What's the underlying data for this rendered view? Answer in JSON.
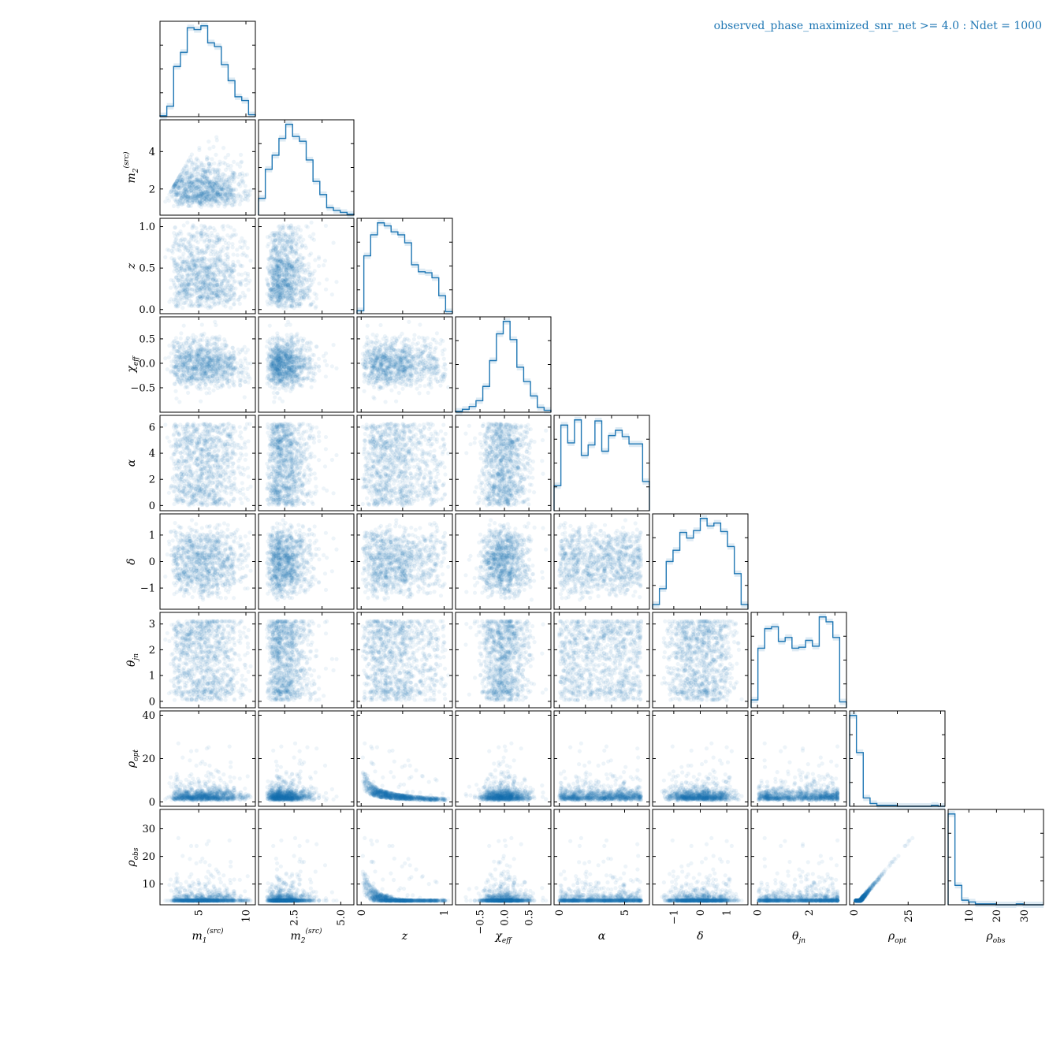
{
  "chart_data": {
    "type": "corner",
    "title": "observed_phase_maximized_snr_net >= 4.0 : Ndet = 1000",
    "n_samples": 1000,
    "color": "#1f77b4",
    "variables": [
      {
        "key": "m1",
        "label": "m",
        "sub": "1",
        "sup": "(src)",
        "range": [
          0.9,
          11.0
        ],
        "ticks": [
          5,
          10
        ],
        "tick_labels": [
          "5",
          "10"
        ],
        "hist": [
          0.01,
          0.11,
          0.53,
          0.68,
          0.94,
          0.92,
          0.96,
          0.78,
          0.74,
          0.55,
          0.38,
          0.21,
          0.17,
          0.02
        ]
      },
      {
        "key": "m2",
        "label": "m",
        "sub": "2",
        "sup": "(src)",
        "range": [
          0.6,
          5.7
        ],
        "ticks": [
          2,
          4
        ],
        "tick_labels": [
          "2",
          "4"
        ],
        "bottom_ticks": [
          2.5,
          5.0
        ],
        "bottom_tick_labels": [
          "2.5",
          "5.0"
        ],
        "hist": [
          0.18,
          0.49,
          0.64,
          0.82,
          0.97,
          0.84,
          0.79,
          0.59,
          0.36,
          0.22,
          0.08,
          0.05,
          0.03,
          0.01
        ]
      },
      {
        "key": "z",
        "label": "z",
        "range": [
          -0.05,
          1.1
        ],
        "ticks": [
          0.0,
          0.5,
          1.0
        ],
        "tick_labels": [
          "0.0",
          "0.5",
          "1.0"
        ],
        "bottom_ticks": [
          0,
          1
        ],
        "bottom_tick_labels": [
          "0",
          "1"
        ],
        "hist": [
          0.03,
          0.58,
          0.79,
          0.91,
          0.88,
          0.82,
          0.79,
          0.71,
          0.49,
          0.42,
          0.41,
          0.36,
          0.18,
          0.02
        ]
      },
      {
        "key": "chi_eff",
        "label": "χ",
        "sub": "eff",
        "range": [
          -1.0,
          0.95
        ],
        "ticks": [
          -0.5,
          0.0,
          0.5
        ],
        "tick_labels": [
          "−0.5",
          "0.0",
          "0.5"
        ],
        "hist": [
          0.01,
          0.03,
          0.06,
          0.12,
          0.27,
          0.54,
          0.82,
          0.95,
          0.76,
          0.47,
          0.32,
          0.17,
          0.05,
          0.02
        ]
      },
      {
        "key": "alpha",
        "label": "α",
        "range": [
          -0.4,
          6.9
        ],
        "ticks": [
          0,
          2,
          4,
          6
        ],
        "tick_labels": [
          "0",
          "2",
          "4",
          "6"
        ],
        "bottom_ticks": [
          0,
          5
        ],
        "bottom_tick_labels": [
          "0",
          "5"
        ],
        "hist": [
          0.24,
          0.82,
          0.65,
          0.87,
          0.53,
          0.63,
          0.86,
          0.57,
          0.72,
          0.77,
          0.71,
          0.64,
          0.64,
          0.28
        ]
      },
      {
        "key": "delta",
        "label": "δ",
        "range": [
          -1.8,
          1.8
        ],
        "ticks": [
          -1,
          0,
          1
        ],
        "tick_labels": [
          "−1",
          "0",
          "1"
        ],
        "hist": [
          0.05,
          0.22,
          0.51,
          0.63,
          0.82,
          0.76,
          0.84,
          0.97,
          0.89,
          0.92,
          0.83,
          0.67,
          0.38,
          0.05
        ]
      },
      {
        "key": "theta_jn",
        "label": "θ",
        "sub": "jn",
        "range": [
          -0.25,
          3.45
        ],
        "ticks": [
          0,
          1,
          2,
          3
        ],
        "tick_labels": [
          "0",
          "1",
          "2",
          "3"
        ],
        "bottom_ticks": [
          0,
          2
        ],
        "bottom_tick_labels": [
          "0",
          "2"
        ],
        "hist": [
          0.08,
          0.61,
          0.81,
          0.83,
          0.68,
          0.72,
          0.61,
          0.62,
          0.69,
          0.63,
          0.93,
          0.88,
          0.72,
          0.06
        ]
      },
      {
        "key": "rho_opt",
        "label": "ρ",
        "sub": "opt",
        "range": [
          -2,
          42
        ],
        "ticks": [
          0,
          20,
          40
        ],
        "tick_labels": [
          "0",
          "20",
          "40"
        ],
        "bottom_ticks": [
          0,
          25
        ],
        "bottom_tick_labels": [
          "0",
          "25"
        ],
        "hist": [
          0.98,
          0.58,
          0.09,
          0.03,
          0.01,
          0.01,
          0.01,
          0.0,
          0.0,
          0.0,
          0.0,
          0.0,
          0.01,
          0.0
        ]
      },
      {
        "key": "rho_obs",
        "label": "ρ",
        "sub": "obs",
        "range": [
          2.5,
          37
        ],
        "ticks": [
          10,
          20,
          30
        ],
        "tick_labels": [
          "10",
          "20",
          "30"
        ],
        "hist": [
          0.98,
          0.21,
          0.05,
          0.03,
          0.01,
          0.01,
          0.01,
          0.0,
          0.0,
          0.0,
          0.01,
          0.0,
          0.0,
          0.0
        ]
      }
    ],
    "grid": false,
    "legend": "none"
  }
}
